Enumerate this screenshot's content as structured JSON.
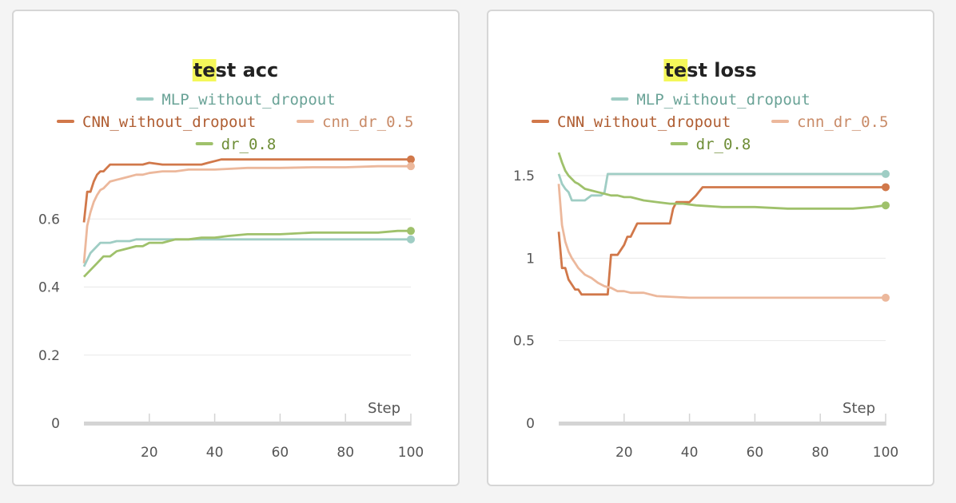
{
  "colors": {
    "MLP_without_dropout": "#9fcdc4",
    "CNN_without_dropout": "#d1784a",
    "cnn_dr_0.5": "#ecb89c",
    "dr_0.8": "#9fc16b",
    "legend_text": {
      "MLP_without_dropout": "#6aa397",
      "CNN_without_dropout": "#b05e33",
      "cnn_dr_0.5": "#c98b68",
      "dr_0.8": "#6e8d36"
    },
    "title_highlight": "#f4f75a",
    "grid": "#e8e8e8",
    "axis": "#d4d4d4"
  },
  "chart_data": [
    {
      "type": "line",
      "title": "test acc",
      "title_highlight_prefix": "te",
      "title_rest": "st acc",
      "xlabel": "Step",
      "ylabel": "",
      "xlim": [
        0,
        100
      ],
      "ylim": [
        0,
        0.8
      ],
      "xticks": [
        20,
        40,
        60,
        80,
        100
      ],
      "yticks": [
        0,
        0.2,
        0.4,
        0.6
      ],
      "ytick_labels": [
        "0",
        "0.2",
        "0.4",
        "0.6"
      ],
      "legend": [
        "MLP_without_dropout",
        "CNN_without_dropout",
        "cnn_dr_0.5",
        "dr_0.8"
      ],
      "series": [
        {
          "name": "MLP_without_dropout",
          "x": [
            0,
            1,
            2,
            3,
            4,
            5,
            6,
            8,
            10,
            12,
            14,
            16,
            20,
            30,
            40,
            60,
            80,
            100
          ],
          "y": [
            0.46,
            0.48,
            0.5,
            0.51,
            0.52,
            0.53,
            0.53,
            0.53,
            0.535,
            0.535,
            0.535,
            0.54,
            0.54,
            0.54,
            0.54,
            0.54,
            0.54,
            0.54
          ]
        },
        {
          "name": "CNN_without_dropout",
          "x": [
            0,
            1,
            2,
            3,
            4,
            5,
            6,
            7,
            8,
            10,
            12,
            14,
            16,
            18,
            20,
            24,
            30,
            36,
            38,
            40,
            42,
            50,
            60,
            80,
            100
          ],
          "y": [
            0.59,
            0.68,
            0.68,
            0.71,
            0.73,
            0.74,
            0.74,
            0.75,
            0.76,
            0.76,
            0.76,
            0.76,
            0.76,
            0.76,
            0.765,
            0.76,
            0.76,
            0.76,
            0.765,
            0.77,
            0.775,
            0.775,
            0.775,
            0.775,
            0.775
          ]
        },
        {
          "name": "cnn_dr_0.5",
          "x": [
            0,
            1,
            2,
            3,
            4,
            5,
            6,
            7,
            8,
            10,
            12,
            14,
            16,
            18,
            20,
            24,
            28,
            32,
            40,
            50,
            60,
            70,
            80,
            90,
            100
          ],
          "y": [
            0.47,
            0.58,
            0.62,
            0.65,
            0.67,
            0.685,
            0.69,
            0.7,
            0.71,
            0.715,
            0.72,
            0.725,
            0.73,
            0.73,
            0.735,
            0.74,
            0.74,
            0.745,
            0.745,
            0.75,
            0.75,
            0.752,
            0.752,
            0.755,
            0.755
          ]
        },
        {
          "name": "dr_0.8",
          "x": [
            0,
            2,
            4,
            6,
            8,
            10,
            12,
            14,
            16,
            18,
            20,
            24,
            28,
            32,
            36,
            40,
            44,
            50,
            60,
            70,
            80,
            90,
            96,
            100
          ],
          "y": [
            0.43,
            0.45,
            0.47,
            0.49,
            0.49,
            0.505,
            0.51,
            0.515,
            0.52,
            0.52,
            0.53,
            0.53,
            0.54,
            0.54,
            0.545,
            0.545,
            0.55,
            0.555,
            0.555,
            0.56,
            0.56,
            0.56,
            0.565,
            0.565
          ]
        }
      ]
    },
    {
      "type": "line",
      "title": "test loss",
      "title_highlight_prefix": "te",
      "title_rest": "st loss",
      "xlabel": "Step",
      "ylabel": "",
      "xlim": [
        0,
        100
      ],
      "ylim": [
        0,
        1.65
      ],
      "xticks": [
        20,
        40,
        60,
        80,
        100
      ],
      "yticks": [
        0,
        0.5,
        1,
        1.5
      ],
      "ytick_labels": [
        "0",
        "0.5",
        "1",
        "1.5"
      ],
      "legend": [
        "MLP_without_dropout",
        "CNN_without_dropout",
        "cnn_dr_0.5",
        "dr_0.8"
      ],
      "series": [
        {
          "name": "MLP_without_dropout",
          "x": [
            0,
            1,
            2,
            3,
            4,
            5,
            8,
            10,
            12,
            13,
            14,
            15,
            16,
            20,
            40,
            60,
            80,
            100
          ],
          "y": [
            1.51,
            1.45,
            1.42,
            1.4,
            1.35,
            1.35,
            1.35,
            1.38,
            1.38,
            1.38,
            1.4,
            1.51,
            1.51,
            1.51,
            1.51,
            1.51,
            1.51,
            1.51
          ]
        },
        {
          "name": "CNN_without_dropout",
          "x": [
            0,
            1,
            2,
            3,
            4,
            5,
            6,
            7,
            8,
            12,
            15,
            16,
            18,
            20,
            21,
            22,
            24,
            30,
            34,
            35,
            36,
            38,
            40,
            42,
            44,
            60,
            80,
            100
          ],
          "y": [
            1.16,
            0.94,
            0.94,
            0.87,
            0.84,
            0.81,
            0.81,
            0.78,
            0.78,
            0.78,
            0.78,
            1.02,
            1.02,
            1.08,
            1.13,
            1.13,
            1.21,
            1.21,
            1.21,
            1.3,
            1.34,
            1.34,
            1.34,
            1.38,
            1.43,
            1.43,
            1.43,
            1.43
          ]
        },
        {
          "name": "cnn_dr_0.5",
          "x": [
            0,
            1,
            2,
            3,
            4,
            5,
            6,
            7,
            8,
            10,
            12,
            14,
            16,
            18,
            20,
            22,
            24,
            26,
            28,
            30,
            40,
            60,
            80,
            100
          ],
          "y": [
            1.45,
            1.2,
            1.1,
            1.04,
            1.0,
            0.97,
            0.94,
            0.92,
            0.9,
            0.88,
            0.85,
            0.83,
            0.82,
            0.8,
            0.8,
            0.79,
            0.79,
            0.79,
            0.78,
            0.77,
            0.76,
            0.76,
            0.76,
            0.76
          ]
        },
        {
          "name": "dr_0.8",
          "x": [
            0,
            1,
            2,
            3,
            4,
            5,
            6,
            8,
            10,
            12,
            14,
            16,
            18,
            20,
            22,
            26,
            30,
            34,
            38,
            42,
            50,
            60,
            70,
            80,
            90,
            96,
            100
          ],
          "y": [
            1.64,
            1.58,
            1.53,
            1.5,
            1.48,
            1.46,
            1.45,
            1.42,
            1.41,
            1.4,
            1.39,
            1.38,
            1.38,
            1.37,
            1.37,
            1.35,
            1.34,
            1.33,
            1.33,
            1.32,
            1.31,
            1.31,
            1.3,
            1.3,
            1.3,
            1.31,
            1.32
          ]
        }
      ]
    }
  ]
}
